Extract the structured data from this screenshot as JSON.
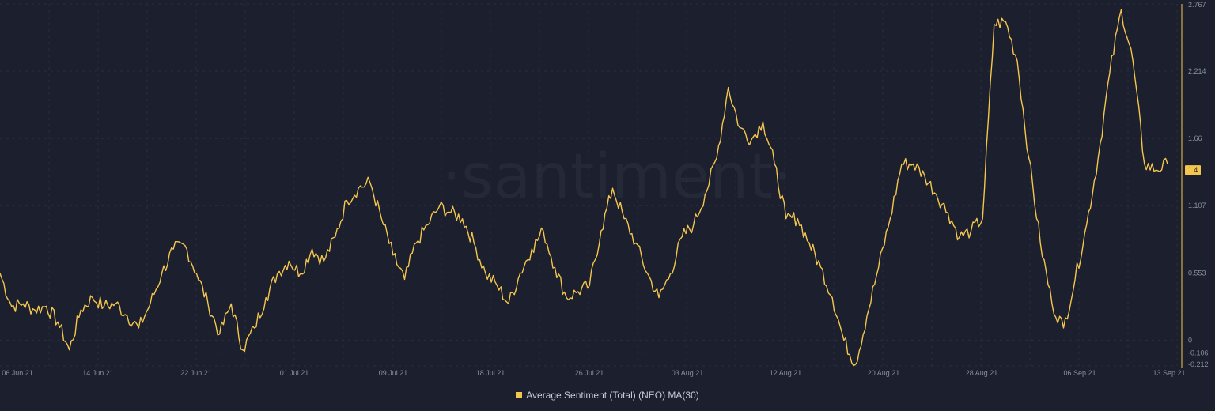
{
  "watermark": "·santiment·",
  "colors": {
    "background": "#1b1f2e",
    "grid": "#2a2f40",
    "line": "#f4c64d",
    "axis_text": "#8a8fa3"
  },
  "chart_data": {
    "type": "line",
    "title": "",
    "xlabel": "",
    "ylabel": "",
    "ylim": [
      -0.212,
      2.767
    ],
    "y_ticks": [
      "2.767",
      "2.214",
      "1.66",
      "1.107",
      "0.553",
      "0",
      "-0.106",
      "-0.212"
    ],
    "y_tick_values": [
      2.767,
      2.214,
      1.66,
      1.107,
      0.553,
      0,
      -0.106,
      -0.212
    ],
    "x_ticks": [
      "06 Jun 21",
      "14 Jun 21",
      "22 Jun 21",
      "01 Jul 21",
      "09 Jul 21",
      "18 Jul 21",
      "26 Jul 21",
      "03 Aug 21",
      "12 Aug 21",
      "20 Aug 21",
      "28 Aug 21",
      "06 Sep 21",
      "13 Sep 21"
    ],
    "grid": true,
    "legend_position": "bottom-center",
    "last_value_label": "1.4",
    "series": [
      {
        "name": "Average Sentiment (Total) (NEO) MA(30)",
        "x": [
          "2021-06-05",
          "2021-06-06",
          "2021-06-07",
          "2021-06-08",
          "2021-06-09",
          "2021-06-10",
          "2021-06-11",
          "2021-06-12",
          "2021-06-13",
          "2021-06-14",
          "2021-06-15",
          "2021-06-16",
          "2021-06-17",
          "2021-06-18",
          "2021-06-19",
          "2021-06-20",
          "2021-06-21",
          "2021-06-22",
          "2021-06-23",
          "2021-06-24",
          "2021-06-25",
          "2021-06-26",
          "2021-06-27",
          "2021-06-28",
          "2021-06-29",
          "2021-06-30",
          "2021-07-01",
          "2021-07-02",
          "2021-07-03",
          "2021-07-04",
          "2021-07-05",
          "2021-07-06",
          "2021-07-07",
          "2021-07-08",
          "2021-07-09",
          "2021-07-10",
          "2021-07-11",
          "2021-07-12",
          "2021-07-13",
          "2021-07-14",
          "2021-07-15",
          "2021-07-16",
          "2021-07-17",
          "2021-07-18",
          "2021-07-19",
          "2021-07-20",
          "2021-07-21",
          "2021-07-22",
          "2021-07-23",
          "2021-07-24",
          "2021-07-25",
          "2021-07-26",
          "2021-07-27",
          "2021-07-28",
          "2021-07-29",
          "2021-07-30",
          "2021-07-31",
          "2021-08-01",
          "2021-08-02",
          "2021-08-03",
          "2021-08-04",
          "2021-08-05",
          "2021-08-06",
          "2021-08-07",
          "2021-08-08",
          "2021-08-09",
          "2021-08-10",
          "2021-08-11",
          "2021-08-12",
          "2021-08-13",
          "2021-08-14",
          "2021-08-15",
          "2021-08-16",
          "2021-08-17",
          "2021-08-18",
          "2021-08-19",
          "2021-08-20",
          "2021-08-21",
          "2021-08-22",
          "2021-08-23",
          "2021-08-24",
          "2021-08-25",
          "2021-08-26",
          "2021-08-27",
          "2021-08-28",
          "2021-08-29",
          "2021-08-30",
          "2021-08-31",
          "2021-09-01",
          "2021-09-02",
          "2021-09-03",
          "2021-09-04",
          "2021-09-05",
          "2021-09-06",
          "2021-09-07",
          "2021-09-08",
          "2021-09-09",
          "2021-09-10",
          "2021-09-11",
          "2021-09-12",
          "2021-09-13",
          "2021-09-14"
        ],
        "values": [
          0.55,
          0.28,
          0.3,
          0.25,
          0.28,
          0.15,
          -0.08,
          0.25,
          0.35,
          0.28,
          0.3,
          0.2,
          0.1,
          0.3,
          0.55,
          0.75,
          0.78,
          0.55,
          0.3,
          0.05,
          0.3,
          -0.08,
          0.1,
          0.35,
          0.55,
          0.65,
          0.55,
          0.75,
          0.65,
          0.85,
          1.15,
          1.25,
          1.3,
          1.0,
          0.7,
          0.5,
          0.8,
          0.95,
          1.1,
          1.05,
          1.0,
          0.8,
          0.55,
          0.45,
          0.3,
          0.55,
          0.75,
          0.9,
          0.6,
          0.35,
          0.4,
          0.45,
          0.9,
          1.25,
          1.0,
          0.8,
          0.55,
          0.35,
          0.55,
          0.85,
          0.95,
          1.2,
          1.5,
          2.08,
          1.75,
          1.65,
          1.8,
          1.45,
          1.0,
          1.0,
          0.8,
          0.6,
          0.35,
          0.0,
          -0.2,
          0.2,
          0.6,
          1.0,
          1.45,
          1.45,
          1.35,
          1.2,
          1.05,
          0.85,
          0.9,
          1.0,
          2.6,
          2.62,
          2.3,
          1.5,
          0.8,
          0.3,
          0.1,
          0.5,
          0.95,
          1.5,
          2.2,
          2.72,
          2.3,
          1.45,
          1.4,
          1.45
        ]
      }
    ]
  }
}
